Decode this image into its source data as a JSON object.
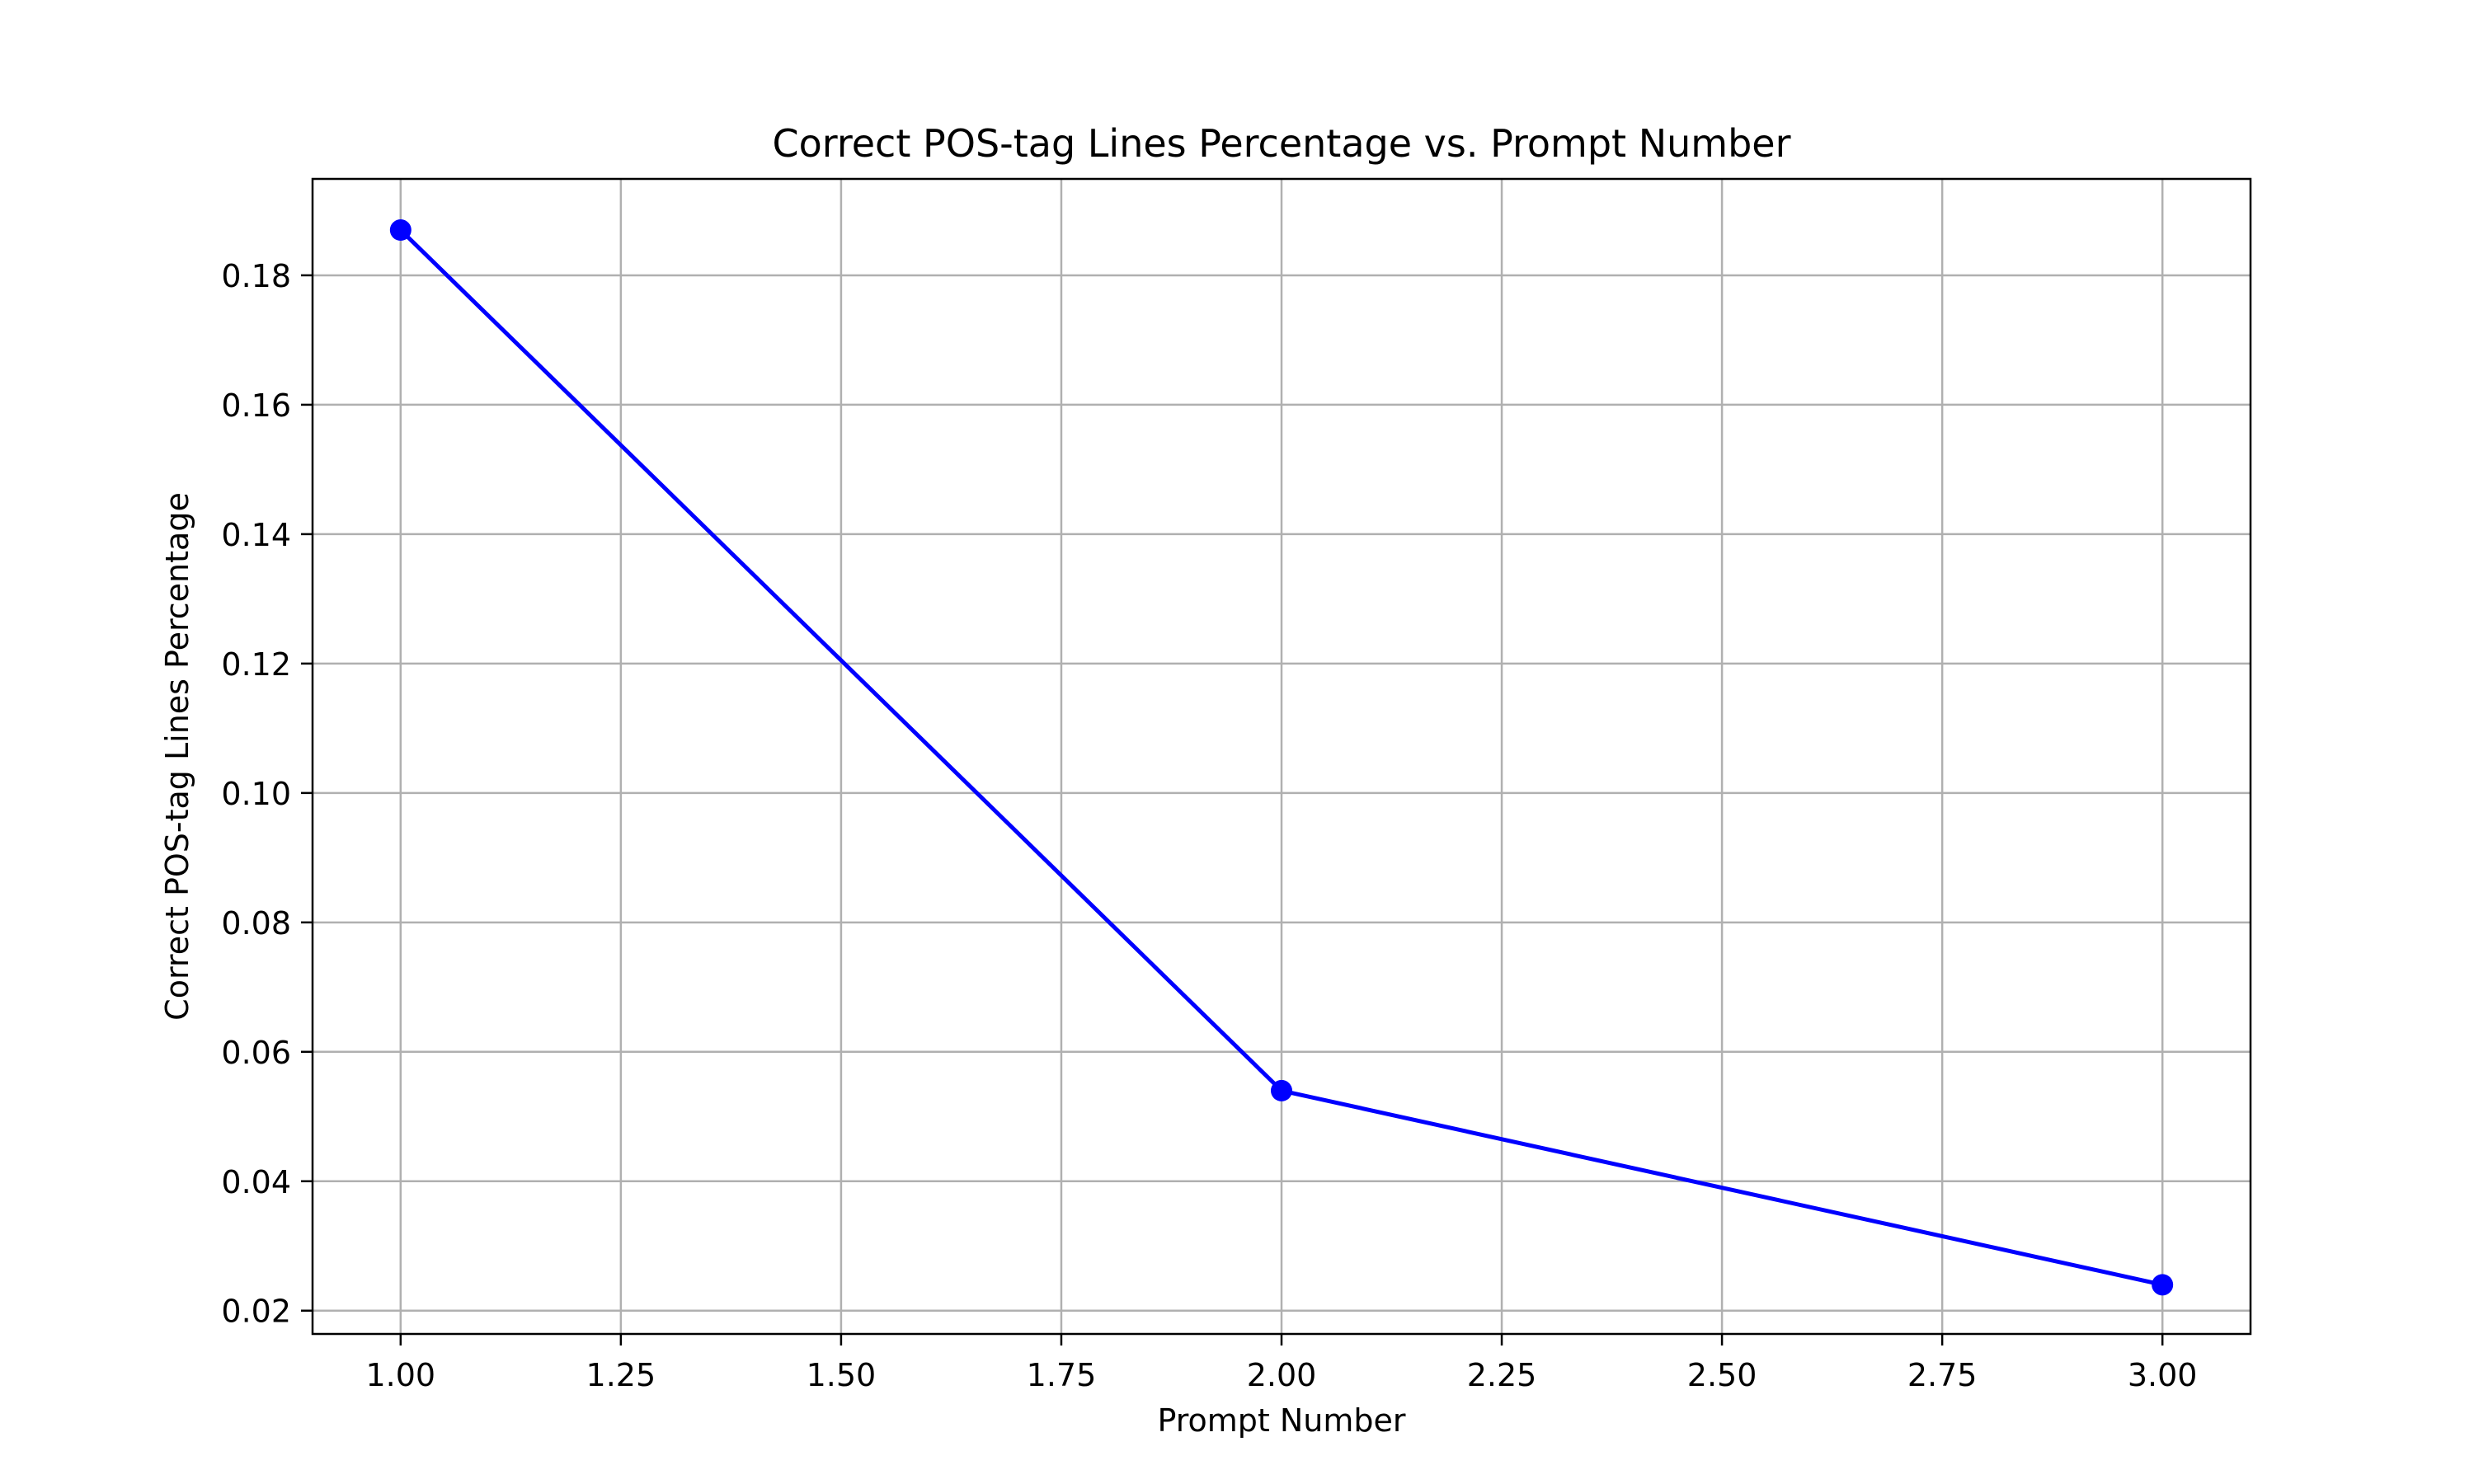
{
  "chart_data": {
    "type": "line",
    "title": "Correct POS-tag Lines Percentage vs. Prompt Number",
    "xlabel": "Prompt Number",
    "ylabel": "Correct POS-tag Lines Percentage",
    "xlim": [
      0.9,
      3.1
    ],
    "ylim": [
      0.0164,
      0.1949
    ],
    "xticks": [
      1.0,
      1.25,
      1.5,
      1.75,
      2.0,
      2.25,
      2.5,
      2.75,
      3.0
    ],
    "xtick_labels": [
      "1.00",
      "1.25",
      "1.50",
      "1.75",
      "2.00",
      "2.25",
      "2.50",
      "2.75",
      "3.00"
    ],
    "yticks": [
      0.02,
      0.04,
      0.06,
      0.08,
      0.1,
      0.12,
      0.14,
      0.16,
      0.18
    ],
    "ytick_labels": [
      "0.02",
      "0.04",
      "0.06",
      "0.08",
      "0.10",
      "0.12",
      "0.14",
      "0.16",
      "0.18"
    ],
    "grid": true,
    "series": [
      {
        "x": [
          1,
          2,
          3
        ],
        "y": [
          0.187,
          0.054,
          0.024
        ],
        "color": "#0000ff",
        "marker": "circle"
      }
    ]
  }
}
